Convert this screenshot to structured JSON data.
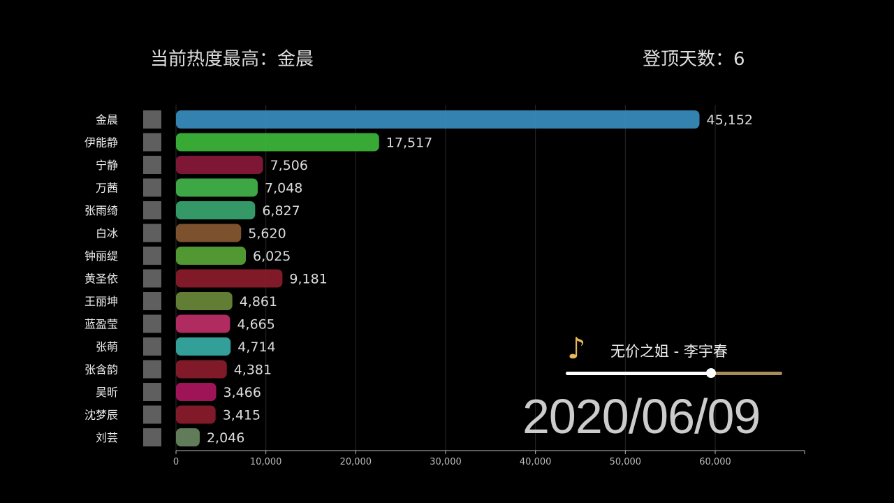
{
  "header": {
    "leader_label": "当前热度最高：金晨",
    "days_label": "登顶天数：6"
  },
  "date": "2020/06/09",
  "music": {
    "song": "无价之姐 - 李宇春",
    "icon": "music-note-icon",
    "progress": 0.67
  },
  "chart_data": {
    "type": "bar",
    "orientation": "horizontal",
    "categories": [
      "金晨",
      "伊能静",
      "宁静",
      "万茜",
      "张雨绮",
      "白冰",
      "钟丽缇",
      "黄圣依",
      "王丽坤",
      "蓝盈莹",
      "张萌",
      "张含韵",
      "吴昕",
      "沈梦辰",
      "刘芸"
    ],
    "values": [
      45152,
      17517,
      7506,
      7048,
      6827,
      5620,
      6025,
      9181,
      4861,
      4665,
      4714,
      4381,
      3466,
      3415,
      2046
    ],
    "value_labels": [
      "45,152",
      "17,517",
      "7,506",
      "7,048",
      "6,827",
      "5,620",
      "6,025",
      "9,181",
      "4,861",
      "4,665",
      "4,714",
      "4,381",
      "3,466",
      "3,415",
      "2,046"
    ],
    "colors": [
      "#3a90c2",
      "#3dbb3a",
      "#8c1a3c",
      "#45b94c",
      "#3aa872",
      "#8a5a32",
      "#5aa838",
      "#8e1d2c",
      "#6c8c3a",
      "#c2306a",
      "#38b0aa",
      "#8e1d2c",
      "#b01660",
      "#8e1d2c",
      "#6a8a62"
    ],
    "x_ticks": [
      0,
      10000,
      20000,
      30000,
      40000,
      50000,
      60000
    ],
    "x_tick_labels": [
      "0",
      "10,000",
      "20,000",
      "30,000",
      "40,000",
      "50,000",
      "60,000"
    ],
    "grid": true
  }
}
